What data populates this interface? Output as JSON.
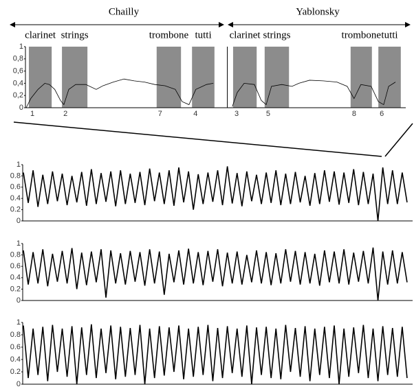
{
  "chart_data": [
    {
      "type": "line",
      "groups": [
        "Chailly",
        "Yablonsky"
      ],
      "regions": [
        {
          "label": "clarinet",
          "start": 0.9,
          "end": 6.9,
          "number": "1"
        },
        {
          "label": "strings",
          "start": 9.6,
          "end": 16.3,
          "number": "2"
        },
        {
          "label": "trombone",
          "start": 34.5,
          "end": 40.9,
          "number": "7"
        },
        {
          "label": "tutti",
          "start": 43.8,
          "end": 49.7,
          "number": "4"
        },
        {
          "label": "clarinet",
          "start": 54.6,
          "end": 60.8,
          "number": "3"
        },
        {
          "label": "strings",
          "start": 62.9,
          "end": 69.3,
          "number": "5"
        },
        {
          "label": "trombone",
          "start": 85.5,
          "end": 91.1,
          "number": "8"
        },
        {
          "label": "tutti",
          "start": 92.8,
          "end": 98.7,
          "number": "6"
        }
      ],
      "x": [
        0.2,
        1.4,
        3.3,
        5.1,
        6.3,
        7.7,
        9.2,
        10.1,
        11.4,
        13.2,
        15.9,
        18.6,
        20.4,
        23.1,
        25.9,
        28.6,
        31.3,
        34,
        36.7,
        39.4,
        41.2,
        43,
        44.8,
        47.6,
        49.4,
        52,
        54.4,
        55.7,
        57.5,
        60.2,
        62,
        63.3,
        64.7,
        67.4,
        70.1,
        71.9,
        74.7,
        78.3,
        81.9,
        84.6,
        86.4,
        88.2,
        90.9,
        92.8,
        94.2,
        95.5,
        97.3
      ],
      "values": [
        0,
        0.15,
        0.3,
        0.4,
        0.38,
        0.3,
        0.12,
        0.05,
        0.3,
        0.38,
        0.38,
        0.3,
        0.36,
        0.42,
        0.47,
        0.44,
        0.42,
        0.38,
        0.36,
        0.3,
        0.1,
        0.05,
        0.3,
        0.38,
        0.4,
        null,
        0.02,
        0.25,
        0.4,
        0.38,
        0.12,
        0.05,
        0.35,
        0.38,
        0.35,
        0.4,
        0.45,
        0.44,
        0.42,
        0.35,
        0.15,
        0.38,
        0.35,
        0.1,
        0.05,
        0.35,
        0.42
      ],
      "xlim": [
        0,
        100
      ],
      "ylim": [
        0,
        1
      ],
      "yticks": [
        0,
        {
          "value": 0.2,
          "label": "0,2"
        },
        {
          "value": 0.4,
          "label": "0,4"
        },
        {
          "value": 0.6,
          "label": "0,6"
        },
        {
          "value": 0.8,
          "label": "0,8"
        },
        1
      ]
    },
    {
      "type": "area",
      "ylim": [
        0,
        1
      ],
      "yticks": [
        0,
        0.2,
        0.4,
        0.6,
        0.8,
        1
      ],
      "series": [
        {
          "values": [
            0.86,
            0.9,
            0.82,
            0.88,
            0.84,
            0.8,
            0.87,
            0.92,
            0.85,
            0.88,
            0.9,
            0.84,
            0.87,
            0.93,
            0.86,
            0.9,
            0.95,
            0.88,
            0.83,
            0.86,
            0.9,
            0.97,
            0.85,
            0.88,
            0.82,
            0.86,
            0.9,
            0.84,
            0.87,
            0.8,
            0.85,
            0.9,
            0.88,
            0.86,
            0.92,
            0.87,
            0.84,
            0.95,
            0.9,
            0.86
          ]
        },
        {
          "values": [
            0.32,
            0.25,
            0.3,
            0.35,
            0.28,
            0.33,
            0.27,
            0.3,
            0.34,
            0.26,
            0.3,
            0.32,
            0.28,
            0.35,
            0.3,
            0.27,
            0.33,
            0.2,
            0.3,
            0.34,
            0.28,
            0.31,
            0.26,
            0.35,
            0.3,
            0.32,
            0.28,
            0.3,
            0.33,
            0.27,
            0.3,
            0.34,
            0.29,
            0.32,
            0.28,
            0.3,
            0,
            0.3,
            0.3,
            0.33
          ]
        }
      ]
    },
    {
      "type": "area",
      "ylim": [
        0,
        1
      ],
      "yticks": [
        0,
        0.2,
        0.4,
        0.6,
        0.8,
        1
      ],
      "series": [
        {
          "values": [
            0.88,
            0.85,
            0.9,
            0.82,
            0.87,
            0.92,
            0.84,
            0.86,
            0.9,
            0.88,
            0.83,
            0.87,
            0.85,
            0.9,
            0.86,
            0.82,
            0.88,
            0.91,
            0.85,
            0.87,
            0.9,
            0.84,
            0.86,
            0.8,
            0.88,
            0.85,
            0.83,
            0.9,
            0.87,
            0.85,
            0.82,
            0.88,
            0.86,
            0.9,
            0.84,
            0.87,
            0.93,
            0.86,
            0.88,
            0.85
          ]
        },
        {
          "values": [
            0.28,
            0.3,
            0.25,
            0.33,
            0.3,
            0.2,
            0.27,
            0.32,
            0.05,
            0.3,
            0.28,
            0.33,
            0.26,
            0.3,
            0.1,
            0.32,
            0.28,
            0.3,
            0.27,
            0.33,
            0.25,
            0.3,
            0.28,
            0.32,
            0.3,
            0.27,
            0.3,
            0.33,
            0.28,
            0.3,
            0.26,
            0.32,
            0.3,
            0.28,
            0.33,
            0.3,
            0,
            0.28,
            0.3,
            0.32
          ]
        }
      ]
    },
    {
      "type": "area",
      "ylim": [
        0,
        1
      ],
      "yticks": [
        0,
        0.2,
        0.4,
        0.6,
        0.8,
        1
      ],
      "series": [
        {
          "values": [
            0.95,
            0.9,
            0.93,
            0.96,
            0.9,
            0.94,
            0.92,
            0.97,
            0.9,
            0.95,
            0.93,
            0.91,
            0.96,
            0.9,
            0.94,
            0.92,
            0.95,
            0.9,
            0.93,
            0.96,
            0.91,
            0.94,
            0.9,
            0.95,
            0.92,
            0.93,
            0.9,
            0.96,
            0.91,
            0.94,
            0.9,
            0.93,
            0.95,
            0.9,
            0.92,
            0.96,
            0.9,
            0.94,
            0.91,
            0.93
          ]
        },
        {
          "values": [
            0.1,
            0.15,
            0.05,
            0.2,
            0.12,
            0,
            0.15,
            0.1,
            0.18,
            0.08,
            0.12,
            0.15,
            0,
            0.1,
            0.14,
            0.2,
            0.08,
            0.12,
            0.15,
            0.05,
            0.1,
            0.18,
            0.12,
            0,
            0.15,
            0.1,
            0.08,
            0.2,
            0.12,
            0.05,
            0.15,
            0.1,
            0,
            0.12,
            0.18,
            0.1,
            0.05,
            0.15,
            0.12,
            0.1
          ]
        }
      ]
    }
  ]
}
